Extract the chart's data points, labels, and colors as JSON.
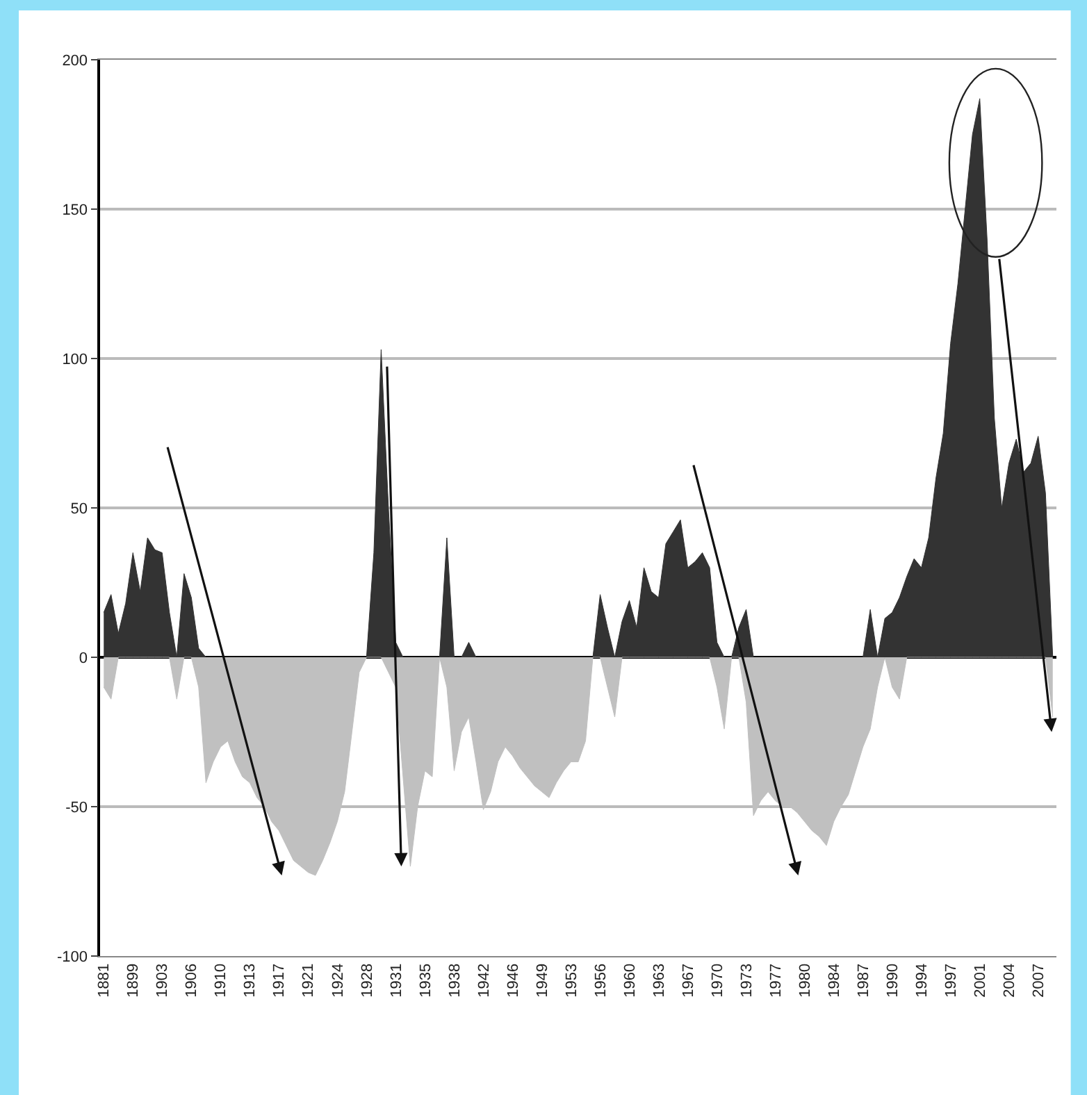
{
  "chart_data": {
    "type": "area",
    "categories": [
      "1881",
      null,
      null,
      null,
      "1899",
      null,
      null,
      null,
      "1903",
      null,
      null,
      null,
      "1906",
      null,
      null,
      null,
      "1910",
      null,
      null,
      null,
      "1913",
      null,
      null,
      null,
      "1917",
      null,
      null,
      null,
      "1921",
      null,
      null,
      null,
      "1924",
      null,
      null,
      null,
      "1928",
      null,
      null,
      null,
      "1931",
      null,
      null,
      null,
      "1935",
      null,
      null,
      null,
      "1938",
      null,
      null,
      null,
      "1942",
      null,
      null,
      null,
      "1946",
      null,
      null,
      null,
      "1949",
      null,
      null,
      null,
      "1953",
      null,
      null,
      null,
      "1956",
      null,
      null,
      null,
      "1960",
      null,
      null,
      null,
      "1963",
      null,
      null,
      null,
      "1967",
      null,
      null,
      null,
      "1970",
      null,
      null,
      null,
      "1973",
      null,
      null,
      null,
      "1977",
      null,
      null,
      null,
      "1980",
      null,
      null,
      null,
      "1984",
      null,
      null,
      null,
      "1987",
      null,
      null,
      null,
      "1990",
      null,
      null,
      null,
      "1994",
      null,
      null,
      null,
      "1997",
      null,
      null,
      null,
      "2001",
      null,
      null,
      null,
      "2004",
      null,
      null,
      null,
      "2007",
      null,
      null
    ],
    "series": [
      {
        "color": "#333333",
        "values": [
          15,
          21,
          8,
          18,
          35,
          22,
          40,
          36,
          35,
          15,
          0,
          28,
          20,
          3,
          0,
          0,
          0,
          0,
          0,
          0,
          0,
          0,
          0,
          0,
          0,
          0,
          0,
          0,
          0,
          0,
          0,
          0,
          0,
          0,
          0,
          0,
          0,
          35,
          103,
          50,
          5,
          0,
          0,
          0,
          0,
          0,
          0,
          40,
          0,
          0,
          5,
          0,
          0,
          0,
          0,
          0,
          0,
          0,
          0,
          0,
          0,
          0,
          0,
          0,
          0,
          0,
          0,
          0,
          21,
          10,
          0,
          12,
          19,
          10,
          30,
          22,
          20,
          38,
          42,
          46,
          30,
          32,
          35,
          30,
          5,
          0,
          0,
          10,
          16,
          0,
          0,
          0,
          0,
          0,
          0,
          0,
          0,
          0,
          0,
          0,
          0,
          0,
          0,
          0,
          0,
          16,
          0,
          13,
          15,
          20,
          27,
          33,
          30,
          40,
          60,
          75,
          105,
          125,
          150,
          175,
          187,
          140,
          80,
          50,
          65,
          73,
          62,
          65,
          74,
          55,
          0
        ]
      },
      {
        "color": "#c0c0c0",
        "values": [
          -10,
          -14,
          0,
          0,
          0,
          0,
          0,
          0,
          0,
          0,
          -14,
          0,
          0,
          -10,
          -42,
          -35,
          -30,
          -28,
          -35,
          -40,
          -42,
          -47,
          -50,
          -55,
          -58,
          -63,
          -68,
          -70,
          -72,
          -73,
          -68,
          -62,
          -55,
          -45,
          -25,
          -5,
          0,
          0,
          0,
          -5,
          -10,
          -40,
          -70,
          -50,
          -38,
          -40,
          0,
          -10,
          -38,
          -25,
          -20,
          -35,
          -51,
          -45,
          -35,
          -30,
          -33,
          -37,
          -40,
          -43,
          -45,
          -47,
          -42,
          -38,
          -35,
          -35,
          -28,
          0,
          0,
          -10,
          -20,
          0,
          0,
          0,
          0,
          0,
          0,
          0,
          0,
          0,
          0,
          0,
          0,
          0,
          -10,
          -24,
          0,
          0,
          -15,
          -53,
          -48,
          -45,
          -48,
          -50,
          -50,
          -52,
          -55,
          -58,
          -60,
          -63,
          -55,
          -50,
          -46,
          -38,
          -30,
          -24,
          -10,
          0,
          -10,
          -14,
          0,
          0,
          0,
          0,
          0,
          0,
          0,
          0,
          0,
          0,
          0,
          0,
          0,
          0,
          0,
          0,
          0,
          0,
          0,
          0,
          -20
        ]
      }
    ],
    "ylim": [
      -100,
      200
    ],
    "yticks": [
      -100,
      -50,
      0,
      50,
      100,
      150,
      200
    ],
    "grid": "y",
    "legend": false
  }
}
